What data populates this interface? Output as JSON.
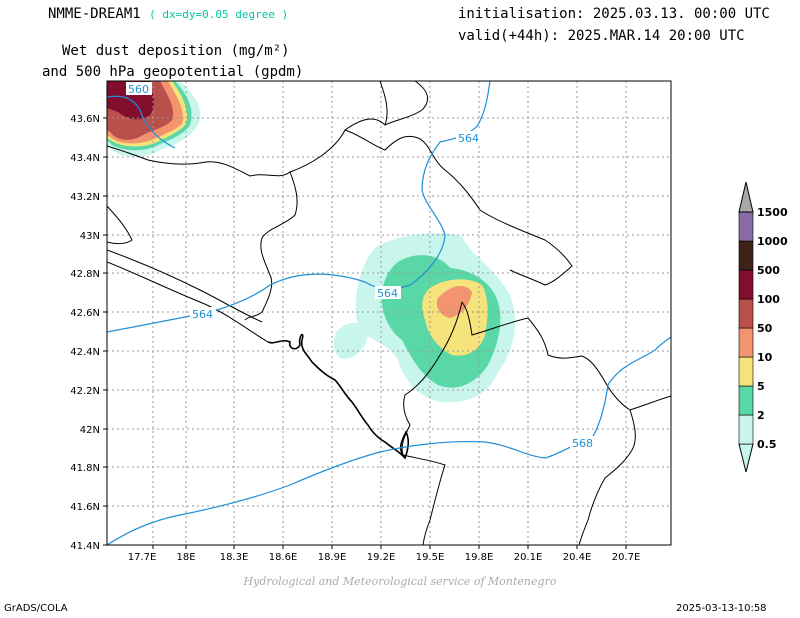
{
  "header": {
    "model": "NMME-DREAM1",
    "resolution": "( dx=dy=0.05 degree )",
    "initialisation": "initialisation: 2025.03.13. 00:00 UTC",
    "valid": "valid(+44h): 2025.MAR.14 20:00 UTC",
    "title_line1": "Wet dust deposition (mg/m²)",
    "title_line2": "and 500 hPa geopotential (gpdm)"
  },
  "map": {
    "lon_ticks": [
      "17.7E",
      "18E",
      "18.3E",
      "18.6E",
      "18.9E",
      "19.2E",
      "19.5E",
      "19.8E",
      "20.1E",
      "20.4E",
      "20.7E"
    ],
    "lat_ticks": [
      "43.6N",
      "43.4N",
      "43.2N",
      "43N",
      "42.8N",
      "42.6N",
      "42.4N",
      "42.2N",
      "42N",
      "41.8N",
      "41.6N",
      "41.4N"
    ],
    "contour_labels": [
      "560",
      "564",
      "564",
      "564",
      "568"
    ]
  },
  "colorbar": {
    "levels": [
      "0.5",
      "2",
      "5",
      "10",
      "50",
      "100",
      "500",
      "1000",
      "1500"
    ],
    "colors": [
      "#c8f5ec",
      "#5ad7a6",
      "#f6e37c",
      "#f29470",
      "#b9504c",
      "#820d2c",
      "#3d2218",
      "#8a6aa5",
      "#a8a8a8"
    ]
  },
  "footer": {
    "credit": "Hydrological and Meteorological service of Montenegro",
    "software": "GrADS/COLA",
    "timestamp": "2025-03-13-10:58"
  }
}
